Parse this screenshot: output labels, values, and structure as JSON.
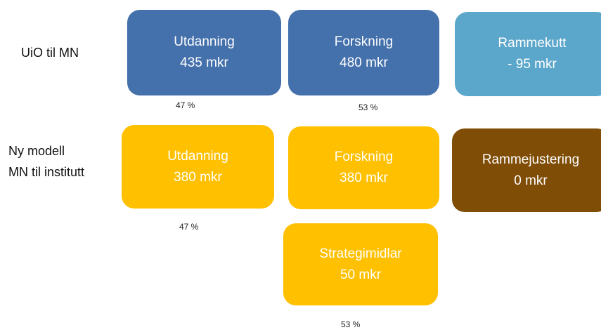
{
  "rows": [
    {
      "label": [
        "UiO til MN"
      ],
      "boxes": [
        {
          "title": "Utdanning",
          "amount": "435 mkr"
        },
        {
          "title": "Forskning",
          "amount": "480 mkr"
        },
        {
          "title": "Rammekutt",
          "amount": "- 95 mkr"
        }
      ],
      "percents": [
        "47 %",
        "53 %"
      ]
    },
    {
      "label": [
        "Ny modell",
        "MN til institutt"
      ],
      "boxes": [
        {
          "title": "Utdanning",
          "amount": "380 mkr"
        },
        {
          "title": "Forskning",
          "amount": "380 mkr"
        },
        {
          "title": "Rammejustering",
          "amount": "0 mkr"
        },
        {
          "title": "Strategimidlar",
          "amount": "50 mkr"
        }
      ],
      "percents": [
        "47 %",
        "53 %"
      ]
    }
  ]
}
